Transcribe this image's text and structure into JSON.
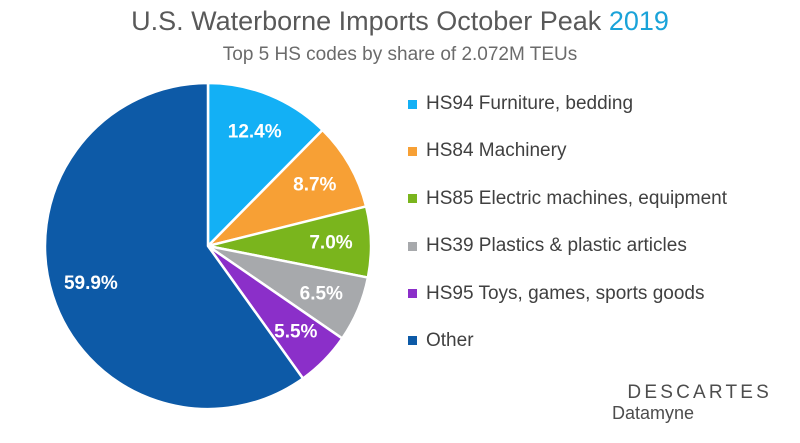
{
  "header": {
    "title": "U.S. Waterborne Imports October Peak",
    "title_year": "2019",
    "subtitle": "Top 5 HS codes by share of 2.072M TEUs"
  },
  "logo": {
    "brand": "DESCARTES",
    "sub": "Datamyne"
  },
  "chart_data": {
    "type": "pie",
    "title": "U.S. Waterborne Imports October Peak 2019",
    "subtitle": "Top 5 HS codes by share of 2.072M TEUs",
    "legend_position": "right",
    "start_angle_deg": 0,
    "direction": "clockwise",
    "slices": [
      {
        "label": "HS94 Furniture, bedding",
        "value": 12.4,
        "display": "12.4%",
        "color": "#13b0f5"
      },
      {
        "label": "HS84 Machinery",
        "value": 8.7,
        "display": "8.7%",
        "color": "#f7a035"
      },
      {
        "label": "HS85 Electric machines, equipment",
        "value": 7.0,
        "display": "7.0%",
        "color": "#7ab51d"
      },
      {
        "label": "HS39 Plastics & plastic articles",
        "value": 6.5,
        "display": "6.5%",
        "color": "#a7a9ac"
      },
      {
        "label": "HS95 Toys, games, sports goods",
        "value": 5.5,
        "display": "5.5%",
        "color": "#8b2fc9"
      },
      {
        "label": "Other",
        "value": 59.9,
        "display": "59.9%",
        "color": "#0d5aa7"
      }
    ]
  }
}
